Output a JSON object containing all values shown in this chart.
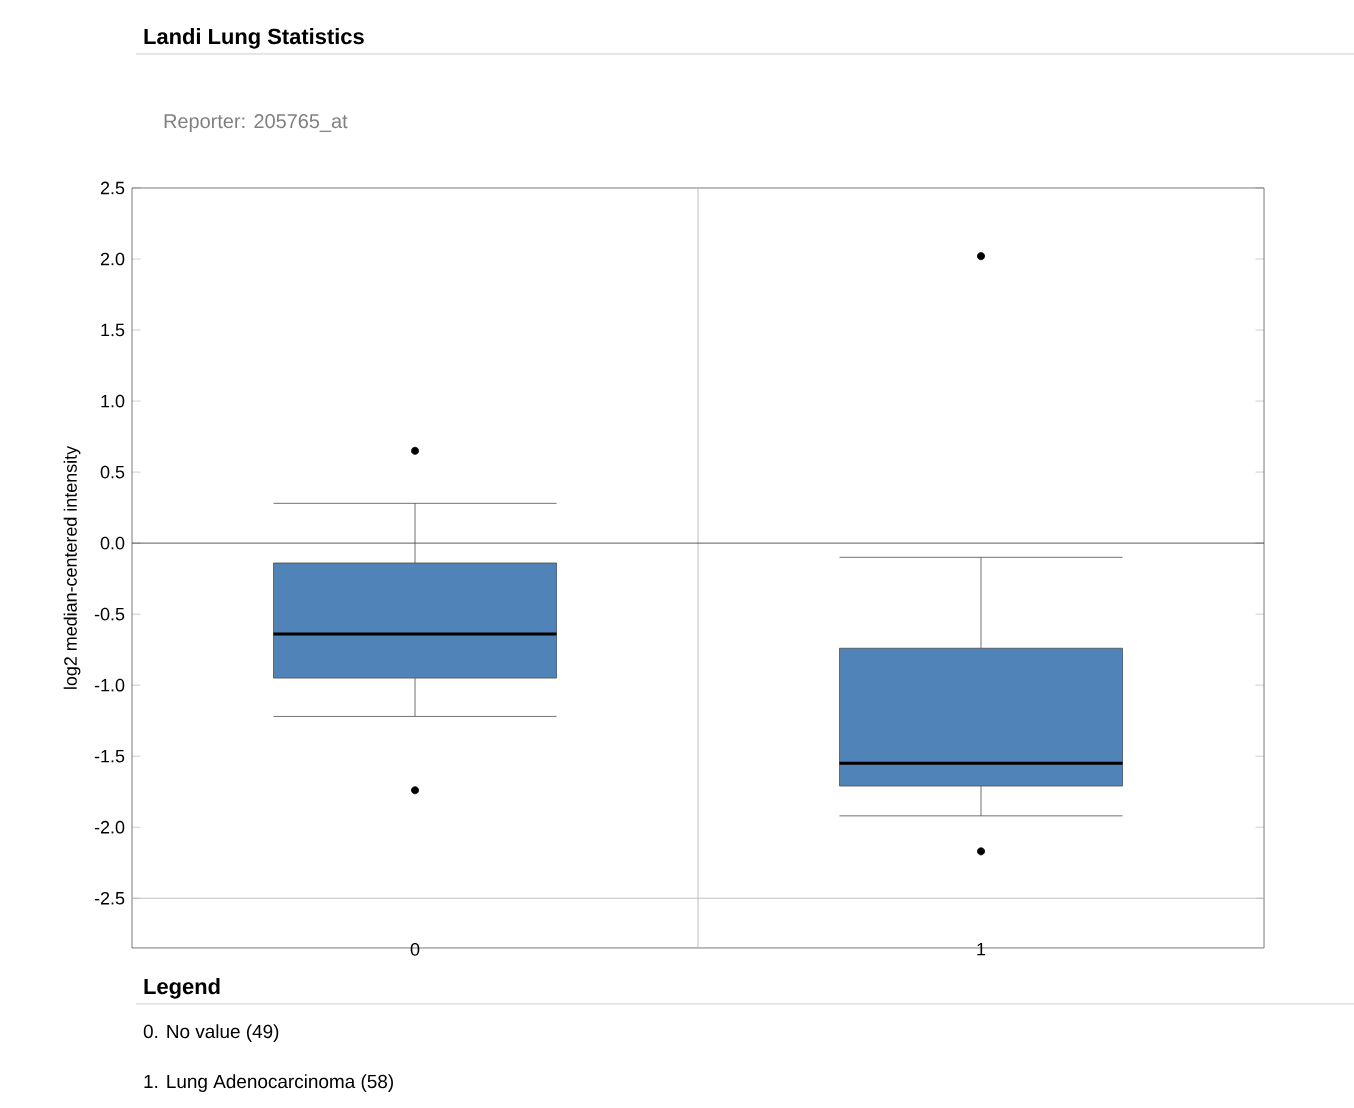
{
  "chart_data": {
    "type": "box",
    "title": "Landi Lung Statistics",
    "subtitle": "Reporter: 205765_at",
    "ylabel": "log2 median-centered intensity",
    "categories": [
      "0",
      "1"
    ],
    "color": "#5084b8",
    "boxes": [
      {
        "low": -1.22,
        "q1": -0.95,
        "median": -0.64,
        "q3": -0.14,
        "high": 0.28,
        "outliers": [
          0.65,
          -1.74
        ]
      },
      {
        "low": -1.92,
        "q1": -1.71,
        "median": -1.55,
        "q3": -0.74,
        "high": -0.1,
        "outliers": [
          2.02,
          -2.17
        ]
      }
    ],
    "ylim": [
      -2.85,
      2.5
    ],
    "yticks": [
      {
        "value": -2.5,
        "label": "-2.5"
      },
      {
        "value": -2.0,
        "label": "-2.0"
      },
      {
        "value": -1.5,
        "label": "-1.5"
      },
      {
        "value": -1.0,
        "label": "-1.0"
      },
      {
        "value": -0.5,
        "label": "-0.5"
      },
      {
        "value": 0.0,
        "label": "0.0"
      },
      {
        "value": 0.5,
        "label": "0.5"
      },
      {
        "value": 1.0,
        "label": "1.0"
      },
      {
        "value": 1.5,
        "label": "1.5"
      },
      {
        "value": 2.0,
        "label": "2.0"
      },
      {
        "value": 2.5,
        "label": "2.5"
      }
    ],
    "grid": "x",
    "ref_lines": [
      {
        "axis": "y",
        "value": 0.0
      },
      {
        "axis": "y",
        "value": -2.5
      }
    ],
    "annotations": [
      "Legend",
      "0. No value (49)",
      "1. Lung Adenocarcinoma (58)"
    ]
  }
}
